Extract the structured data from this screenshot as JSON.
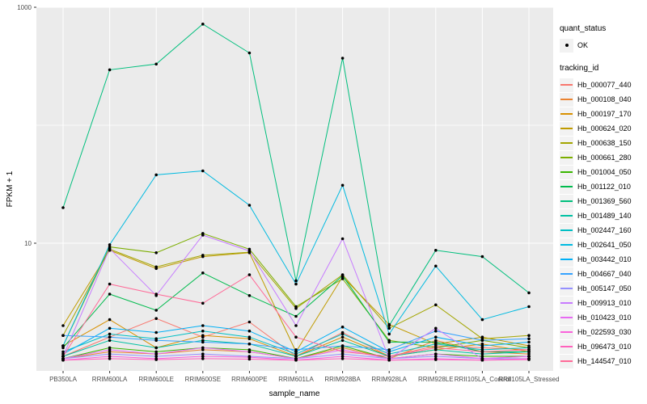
{
  "figure": {
    "background": "#ffffff",
    "panel_background": "#ebebeb",
    "grid_color": "#ffffff",
    "tick_label_color": "#4d4d4d",
    "axis_title_color": "#000000",
    "point_color": "#000000"
  },
  "legend": {
    "quant_title": "quant_status",
    "quant_items": [
      {
        "label": "OK",
        "marker": "point",
        "color": "#000000"
      }
    ],
    "tracking_title": "tracking_id"
  },
  "chart_data": {
    "type": "line",
    "title": "",
    "xlabel": "sample_name",
    "ylabel": "FPKM + 1",
    "yscale": "log10",
    "ylim": [
      0.84,
      1000
    ],
    "y_breaks": [
      1000,
      10
    ],
    "y_break_labels": [
      "1000",
      "10"
    ],
    "y_gridlines": [
      1000,
      100,
      10
    ],
    "grid": true,
    "legend_position": "right",
    "categories": [
      "PB350LA",
      "RRIM600LA",
      "RRIM600LE",
      "RRIM600SE",
      "RRIM600PE",
      "RRIM601LA",
      "RRIM928BA",
      "RRIM928LA",
      "RRIM928LE",
      "RRII105LA_Control",
      "RRII105LA_Stressed"
    ],
    "series": [
      {
        "name": "Hb_000077_440",
        "color": "#F8766D",
        "values": [
          1.1,
          1.6,
          2.3,
          1.6,
          2.15,
          1.1,
          1.75,
          1.1,
          1.35,
          1.3,
          1.25
        ]
      },
      {
        "name": "Hb_000108_040",
        "color": "#EA8331",
        "values": [
          1.05,
          1.2,
          1.15,
          1.25,
          1.2,
          1.05,
          1.3,
          1.05,
          1.5,
          1.2,
          1.15
        ]
      },
      {
        "name": "Hb_000197_170",
        "color": "#D89000",
        "values": [
          1.35,
          2.25,
          1.3,
          1.65,
          1.55,
          1.1,
          1.6,
          1.1,
          1.25,
          1.4,
          1.2
        ]
      },
      {
        "name": "Hb_000624_020",
        "color": "#C09B00",
        "values": [
          2.0,
          8.7,
          6.1,
          7.7,
          8.3,
          1.2,
          5.2,
          2.05,
          1.4,
          1.6,
          1.35
        ]
      },
      {
        "name": "Hb_000638_150",
        "color": "#A3A500",
        "values": [
          1.65,
          8.9,
          6.3,
          7.9,
          8.4,
          2.8,
          5.4,
          1.9,
          3.0,
          1.55,
          1.65
        ]
      },
      {
        "name": "Hb_000661_280",
        "color": "#7CAE00",
        "values": [
          1.35,
          9.3,
          8.3,
          12.1,
          8.9,
          2.9,
          5.0,
          1.5,
          1.3,
          1.5,
          1.3
        ]
      },
      {
        "name": "Hb_001004_050",
        "color": "#39B600",
        "values": [
          1.05,
          1.3,
          1.2,
          1.3,
          1.25,
          1.05,
          1.35,
          1.05,
          1.15,
          1.1,
          1.1
        ]
      },
      {
        "name": "Hb_001122_010",
        "color": "#00BB4E",
        "values": [
          1.3,
          3.7,
          2.7,
          5.6,
          3.6,
          2.4,
          5.3,
          1.45,
          1.45,
          1.2,
          1.2
        ]
      },
      {
        "name": "Hb_001369_560",
        "color": "#00BF7D",
        "values": [
          20.0,
          295,
          330,
          720,
          410,
          4.8,
          370,
          2.0,
          8.7,
          7.7,
          3.8
        ]
      },
      {
        "name": "Hb_001489_140",
        "color": "#00C1A3",
        "values": [
          1.1,
          1.5,
          1.3,
          1.5,
          1.4,
          1.1,
          1.5,
          1.1,
          1.25,
          1.15,
          1.2
        ]
      },
      {
        "name": "Hb_002447_160",
        "color": "#00BFC4",
        "values": [
          1.2,
          1.7,
          1.55,
          1.8,
          1.6,
          1.15,
          1.7,
          1.15,
          1.4,
          1.25,
          1.3
        ]
      },
      {
        "name": "Hb_002641_050",
        "color": "#00BAE0",
        "values": [
          1.35,
          9.7,
          38.0,
          41.0,
          21.0,
          4.5,
          31.0,
          1.7,
          6.4,
          2.25,
          2.9
        ]
      },
      {
        "name": "Hb_003442_010",
        "color": "#00B0F6",
        "values": [
          1.15,
          1.9,
          1.75,
          2.0,
          1.8,
          1.2,
          1.95,
          1.2,
          1.6,
          1.35,
          1.45
        ]
      },
      {
        "name": "Hb_004667_040",
        "color": "#35A2FF",
        "values": [
          1.65,
          1.6,
          1.5,
          1.45,
          1.4,
          1.25,
          1.35,
          1.25,
          1.8,
          1.5,
          1.55
        ]
      },
      {
        "name": "Hb_005147_050",
        "color": "#9590FF",
        "values": [
          1.05,
          1.15,
          1.1,
          1.15,
          1.1,
          1.05,
          1.15,
          1.05,
          1.1,
          1.05,
          1.05
        ]
      },
      {
        "name": "Hb_009913_010",
        "color": "#C77CFF",
        "values": [
          1.1,
          9.0,
          3.6,
          11.7,
          8.6,
          2.0,
          10.9,
          1.05,
          1.9,
          1.05,
          1.1
        ]
      },
      {
        "name": "Hb_010423_010",
        "color": "#E76BF3",
        "values": [
          1.05,
          1.25,
          1.15,
          1.3,
          1.2,
          1.05,
          1.25,
          1.05,
          1.15,
          1.05,
          1.1
        ]
      },
      {
        "name": "Hb_022593_030",
        "color": "#FA62DB",
        "values": [
          1.02,
          1.1,
          1.05,
          1.1,
          1.08,
          1.02,
          1.1,
          1.02,
          1.05,
          1.02,
          1.05
        ]
      },
      {
        "name": "Hb_096473_010",
        "color": "#FF62BC",
        "values": [
          1.02,
          1.05,
          1.03,
          1.05,
          1.04,
          1.02,
          1.05,
          1.02,
          1.03,
          1.02,
          1.03
        ]
      },
      {
        "name": "Hb_144547_010",
        "color": "#FF6A98",
        "values": [
          1.1,
          4.5,
          3.7,
          3.1,
          5.4,
          1.6,
          1.2,
          1.1,
          1.3,
          1.2,
          1.25
        ]
      }
    ]
  }
}
